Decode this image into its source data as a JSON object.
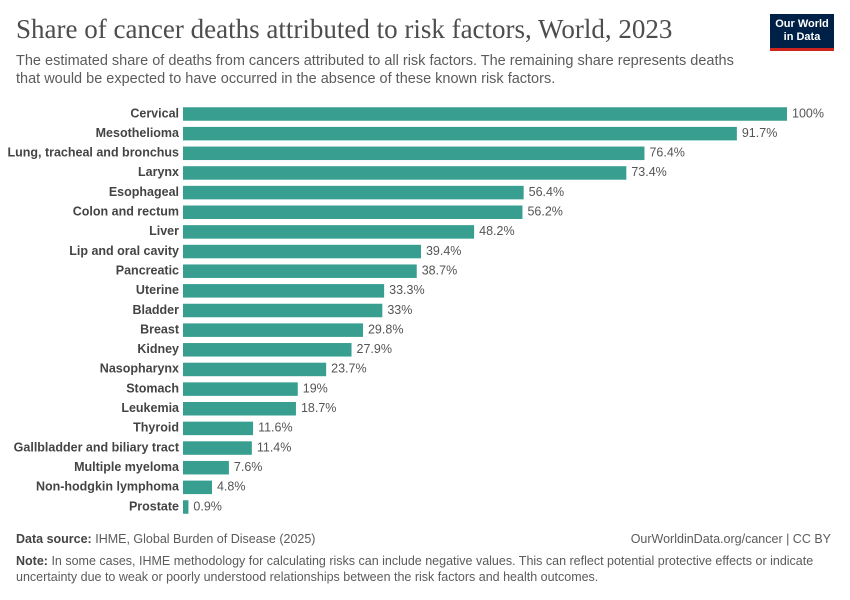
{
  "chart_data": {
    "type": "bar",
    "orientation": "horizontal",
    "title": "Share of cancer deaths attributed to risk factors, World, 2023",
    "subtitle": "The estimated share of deaths from cancers attributed to all risk factors. The remaining share represents deaths that would be expected to have occurred in the absence of these known risk factors.",
    "logo": [
      "Our World",
      "in Data"
    ],
    "categories": [
      "Cervical",
      "Mesothelioma",
      "Lung, tracheal and bronchus",
      "Larynx",
      "Esophageal",
      "Colon and rectum",
      "Liver",
      "Lip and oral cavity",
      "Pancreatic",
      "Uterine",
      "Bladder",
      "Breast",
      "Kidney",
      "Nasopharynx",
      "Stomach",
      "Leukemia",
      "Thyroid",
      "Gallbladder and biliary tract",
      "Multiple myeloma",
      "Non-hodgkin lymphoma",
      "Prostate"
    ],
    "values": [
      100,
      91.7,
      76.4,
      73.4,
      56.4,
      56.2,
      48.2,
      39.4,
      38.7,
      33.3,
      33,
      29.8,
      27.9,
      23.7,
      19,
      18.7,
      11.6,
      11.4,
      7.6,
      4.8,
      0.9
    ],
    "value_labels": [
      "100%",
      "91.7%",
      "76.4%",
      "73.4%",
      "56.4%",
      "56.2%",
      "48.2%",
      "39.4%",
      "38.7%",
      "33.3%",
      "33%",
      "29.8%",
      "27.9%",
      "23.7%",
      "19%",
      "18.7%",
      "11.6%",
      "11.4%",
      "7.6%",
      "4.8%",
      "0.9%"
    ],
    "color": "#379e90",
    "source_label": "Data source:",
    "source": "IHME, Global Burden of Disease (2025)",
    "url": "OurWorldinData.org/cancer | CC BY",
    "note_label": "Note:",
    "note": "In some cases, IHME methodology for calculating risks can include negative values. This can reflect potential protective effects or indicate uncertainty due to weak or poorly understood relationships between the risk factors and health outcomes."
  }
}
